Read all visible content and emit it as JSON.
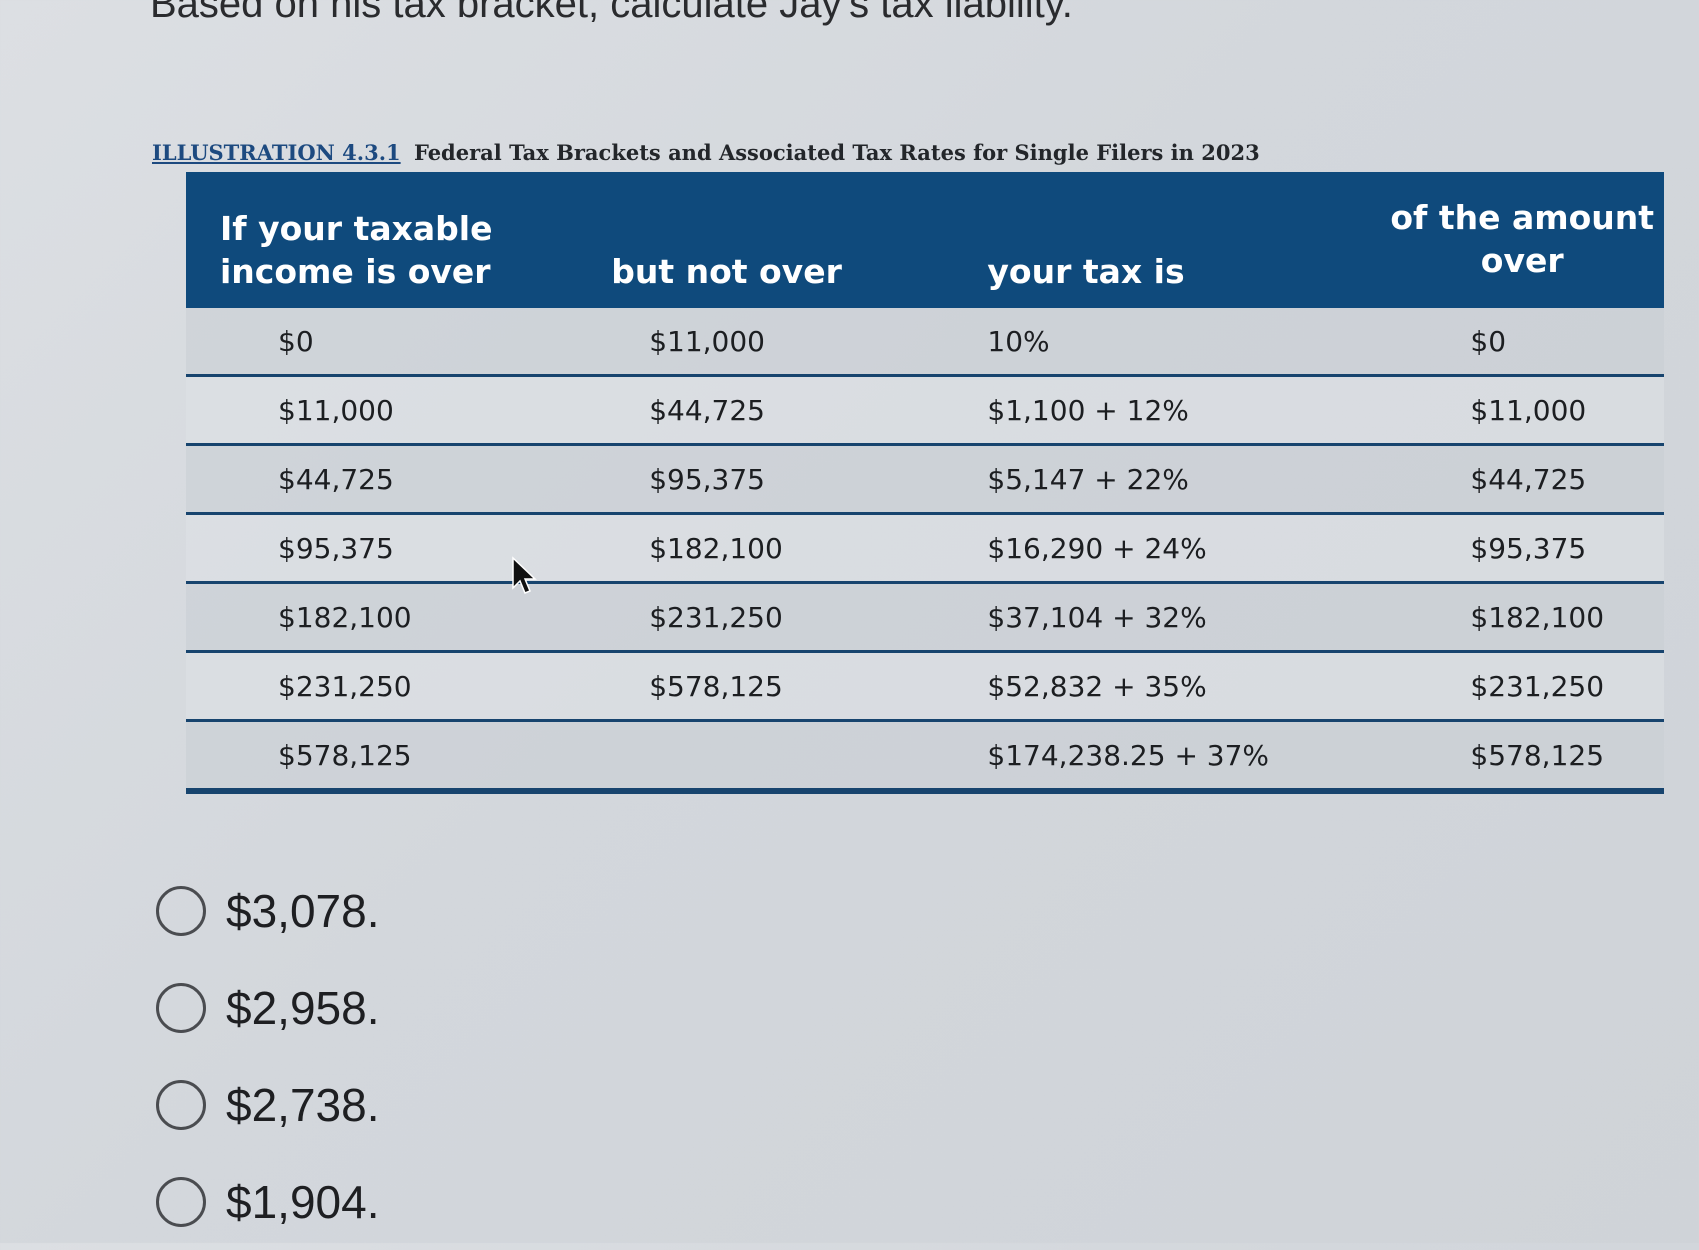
{
  "question": "Based on his tax bracket, calculate Jay's tax liability.",
  "caption": {
    "ref": "ILLUSTRATION 4.3.1",
    "text": "Federal Tax Brackets and Associated Tax Rates for Single Filers in 2023"
  },
  "table": {
    "headers": {
      "col1_line1": "If your taxable",
      "col1_line2": "income is over",
      "col2": "but not over",
      "col3": "your tax is",
      "col4_line1": "of the amount",
      "col4_line2": "over"
    },
    "rows": [
      {
        "over": "$0",
        "not_over": "$11,000",
        "tax": "10%",
        "amount_over": "$0"
      },
      {
        "over": "$11,000",
        "not_over": "$44,725",
        "tax": "$1,100 + 12%",
        "amount_over": "$11,000"
      },
      {
        "over": "$44,725",
        "not_over": "$95,375",
        "tax": "$5,147 + 22%",
        "amount_over": "$44,725"
      },
      {
        "over": "$95,375",
        "not_over": "$182,100",
        "tax": "$16,290 + 24%",
        "amount_over": "$95,375"
      },
      {
        "over": "$182,100",
        "not_over": "$231,250",
        "tax": "$37,104 + 32%",
        "amount_over": "$182,100"
      },
      {
        "over": "$231,250",
        "not_over": "$578,125",
        "tax": "$52,832 + 35%",
        "amount_over": "$231,250"
      },
      {
        "over": "$578,125",
        "not_over": "",
        "tax": "$174,238.25 + 37%",
        "amount_over": "$578,125"
      }
    ]
  },
  "options": [
    {
      "label": "$3,078."
    },
    {
      "label": "$2,958."
    },
    {
      "label": "$2,738."
    },
    {
      "label": "$1,904."
    }
  ],
  "colors": {
    "header_bg": "#0f4a7c",
    "rule": "#17446e"
  }
}
